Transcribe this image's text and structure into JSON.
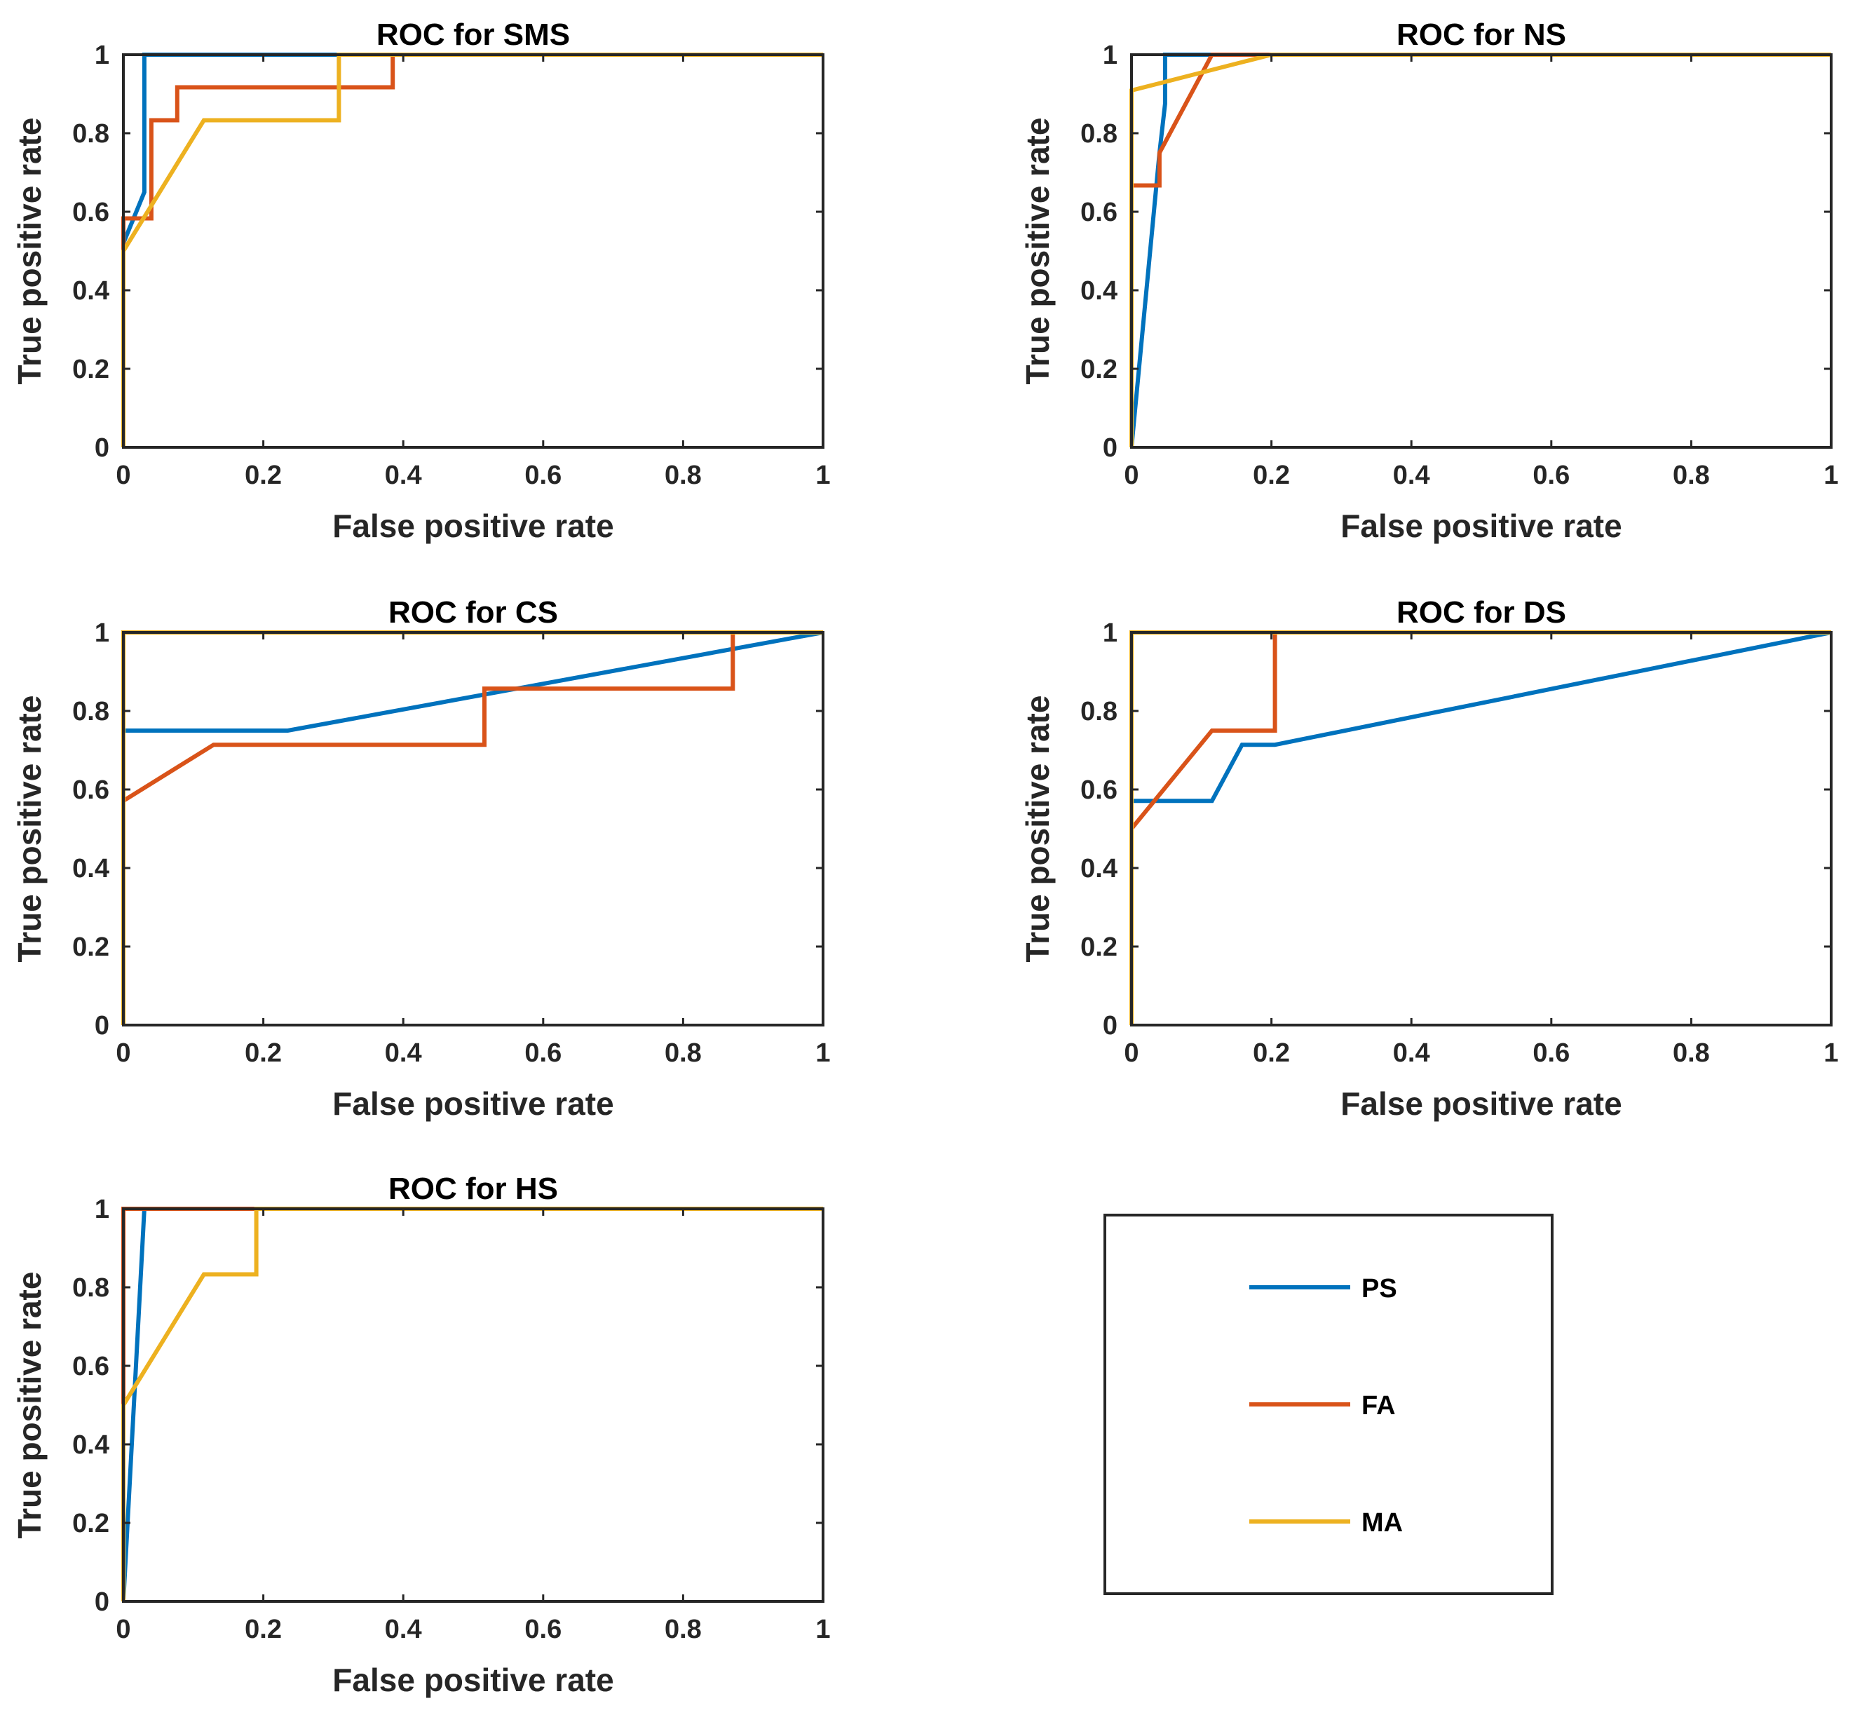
{
  "legend": {
    "entries": [
      {
        "name": "PS",
        "color": "#0072BD"
      },
      {
        "name": "FA",
        "color": "#D95319"
      },
      {
        "name": "MA",
        "color": "#EDB120"
      }
    ]
  },
  "chart_data": [
    {
      "type": "line",
      "title": "ROC for SMS",
      "xlabel": "False positive rate",
      "ylabel": "True positive rate",
      "xlim": [
        0,
        1
      ],
      "ylim": [
        0,
        1
      ],
      "xticks": [
        "0",
        "0.2",
        "0.4",
        "0.6",
        "0.8",
        "1"
      ],
      "yticks": [
        "0",
        "0.2",
        "0.4",
        "0.6",
        "0.8",
        "1"
      ],
      "series": [
        {
          "name": "PS",
          "x": [
            0,
            0,
            0.03,
            0.03,
            1
          ],
          "y": [
            0,
            0.52,
            0.65,
            1,
            1
          ]
        },
        {
          "name": "FA",
          "x": [
            0,
            0,
            0.04,
            0.04,
            0.077,
            0.077,
            0.385,
            0.385,
            1
          ],
          "y": [
            0,
            0.583,
            0.583,
            0.833,
            0.833,
            0.917,
            0.917,
            1,
            1
          ]
        },
        {
          "name": "MA",
          "x": [
            0,
            0,
            0.115,
            0.308,
            0.308,
            1
          ],
          "y": [
            0,
            0.5,
            0.833,
            0.833,
            1,
            1
          ]
        }
      ]
    },
    {
      "type": "line",
      "title": "ROC for NS",
      "xlabel": "False positive rate",
      "ylabel": "True positive rate",
      "xlim": [
        0,
        1
      ],
      "ylim": [
        0,
        1
      ],
      "xticks": [
        "0",
        "0.2",
        "0.4",
        "0.6",
        "0.8",
        "1"
      ],
      "yticks": [
        "0",
        "0.2",
        "0.4",
        "0.6",
        "0.8",
        "1"
      ],
      "series": [
        {
          "name": "PS",
          "x": [
            0,
            0.04,
            0.048,
            0.048,
            1
          ],
          "y": [
            0,
            0.75,
            0.875,
            1,
            1
          ]
        },
        {
          "name": "FA",
          "x": [
            0,
            0,
            0.04,
            0.04,
            0.115,
            1
          ],
          "y": [
            0,
            0.667,
            0.667,
            0.75,
            1,
            1
          ]
        },
        {
          "name": "MA",
          "x": [
            0,
            0,
            0.2,
            1
          ],
          "y": [
            0,
            0.909,
            1,
            1
          ]
        }
      ]
    },
    {
      "type": "line",
      "title": "ROC for CS",
      "xlabel": "False positive rate",
      "ylabel": "True positive rate",
      "xlim": [
        0,
        1
      ],
      "ylim": [
        0,
        1
      ],
      "xticks": [
        "0",
        "0.2",
        "0.4",
        "0.6",
        "0.8",
        "1"
      ],
      "yticks": [
        "0",
        "0.2",
        "0.4",
        "0.6",
        "0.8",
        "1"
      ],
      "series": [
        {
          "name": "PS",
          "x": [
            0,
            0,
            0.235,
            1
          ],
          "y": [
            0,
            0.75,
            0.75,
            1
          ]
        },
        {
          "name": "FA",
          "x": [
            0,
            0,
            0.129,
            0.516,
            0.516,
            0.871,
            0.871,
            1
          ],
          "y": [
            0,
            0.571,
            0.714,
            0.714,
            0.857,
            0.857,
            1,
            1
          ]
        },
        {
          "name": "MA",
          "x": [
            0,
            0,
            1
          ],
          "y": [
            0,
            1,
            1
          ]
        }
      ]
    },
    {
      "type": "line",
      "title": "ROC for DS",
      "xlabel": "False positive rate",
      "ylabel": "True positive rate",
      "xlim": [
        0,
        1
      ],
      "ylim": [
        0,
        1
      ],
      "xticks": [
        "0",
        "0.2",
        "0.4",
        "0.6",
        "0.8",
        "1"
      ],
      "yticks": [
        "0",
        "0.2",
        "0.4",
        "0.6",
        "0.8",
        "1"
      ],
      "series": [
        {
          "name": "PS",
          "x": [
            0,
            0,
            0.115,
            0.158,
            0.205,
            1
          ],
          "y": [
            0,
            0.571,
            0.571,
            0.714,
            0.714,
            1
          ]
        },
        {
          "name": "FA",
          "x": [
            0,
            0,
            0.115,
            0.205,
            0.205,
            1
          ],
          "y": [
            0,
            0.5,
            0.75,
            0.75,
            1,
            1
          ]
        },
        {
          "name": "MA",
          "x": [
            0,
            0,
            1
          ],
          "y": [
            0,
            1,
            1
          ]
        }
      ]
    },
    {
      "type": "line",
      "title": "ROC for HS",
      "xlabel": "False positive rate",
      "ylabel": "True positive rate",
      "xlim": [
        0,
        1
      ],
      "ylim": [
        0,
        1
      ],
      "xticks": [
        "0",
        "0.2",
        "0.4",
        "0.6",
        "0.8",
        "1"
      ],
      "yticks": [
        "0",
        "0.2",
        "0.4",
        "0.6",
        "0.8",
        "1"
      ],
      "series": [
        {
          "name": "PS",
          "x": [
            0,
            0.03,
            1
          ],
          "y": [
            0,
            1,
            1
          ]
        },
        {
          "name": "FA",
          "x": [
            0,
            0,
            1
          ],
          "y": [
            0,
            1,
            1
          ]
        },
        {
          "name": "MA",
          "x": [
            0,
            0,
            0.115,
            0.19,
            0.19,
            1
          ],
          "y": [
            0,
            0.5,
            0.833,
            0.833,
            1,
            1
          ]
        }
      ]
    }
  ]
}
